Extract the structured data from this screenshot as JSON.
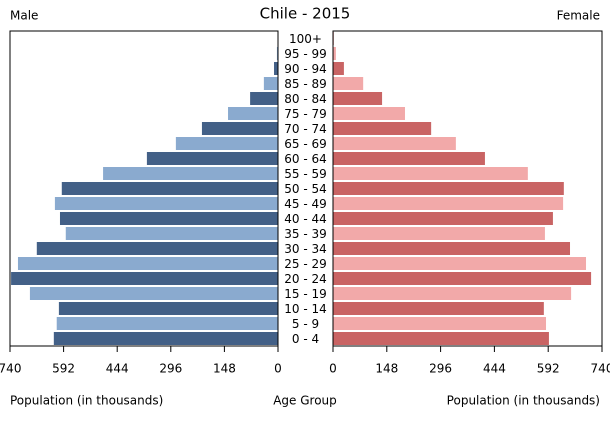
{
  "chart_data": {
    "type": "population-pyramid",
    "title": "Chile - 2015",
    "categories": [
      "0 - 4",
      "5 - 9",
      "10 - 14",
      "15 - 19",
      "20 - 24",
      "25 - 29",
      "30 - 34",
      "35 - 39",
      "40 - 44",
      "45 - 49",
      "50 - 54",
      "55 - 59",
      "60 - 64",
      "65 - 69",
      "70 - 74",
      "75 - 79",
      "80 - 84",
      "85 - 89",
      "90 - 94",
      "95 - 99",
      "100+"
    ],
    "category_label": "Age Group",
    "xlabel": "Population (in thousands)",
    "xlim": [
      0,
      740
    ],
    "xticks": [
      0,
      148,
      296,
      444,
      592,
      740
    ],
    "series": [
      {
        "name": "Male",
        "colors": [
          "#436087",
          "#8aaacf"
        ],
        "values": [
          619,
          611,
          605,
          685,
          737,
          718,
          666,
          586,
          602,
          616,
          597,
          483,
          362,
          282,
          210,
          138,
          77,
          39,
          11,
          3,
          1
        ]
      },
      {
        "name": "Female",
        "colors": [
          "#c96464",
          "#f2a9a9"
        ],
        "values": [
          594,
          586,
          580,
          655,
          710,
          696,
          652,
          583,
          605,
          633,
          635,
          536,
          418,
          338,
          270,
          198,
          135,
          83,
          30,
          8,
          2
        ]
      }
    ]
  }
}
